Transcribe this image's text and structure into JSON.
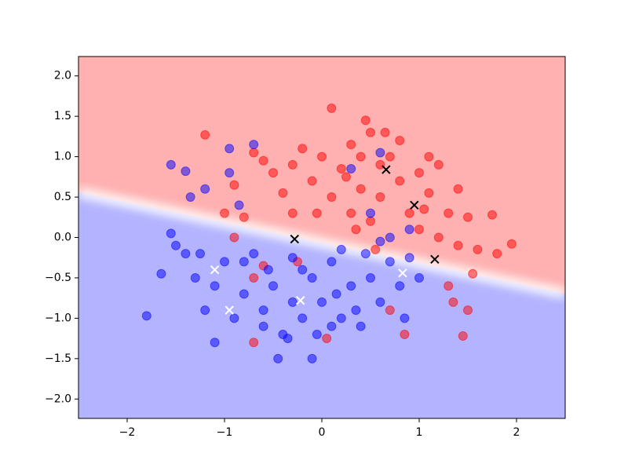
{
  "chart_data": {
    "type": "scatter",
    "xlim": [
      -2.5,
      2.5
    ],
    "ylim": [
      -2.24,
      2.24
    ],
    "xticks": [
      {
        "value": -2,
        "label": "−2"
      },
      {
        "value": -1,
        "label": "−1"
      },
      {
        "value": 0,
        "label": "0"
      },
      {
        "value": 1,
        "label": "1"
      },
      {
        "value": 2,
        "label": "2"
      }
    ],
    "yticks": [
      {
        "value": -2,
        "label": "−2.0"
      },
      {
        "value": -1.5,
        "label": "−1.5"
      },
      {
        "value": -1,
        "label": "−1.0"
      },
      {
        "value": -0.5,
        "label": "−0.5"
      },
      {
        "value": 0,
        "label": "0.0"
      },
      {
        "value": 0.5,
        "label": "0.5"
      },
      {
        "value": 1,
        "label": "1.0"
      },
      {
        "value": 1.5,
        "label": "1.5"
      },
      {
        "value": 2,
        "label": "2.0"
      }
    ],
    "series": [
      {
        "color": "#ff0000",
        "marker": "o",
        "x": [
          -1.2,
          -0.9,
          -0.7,
          -0.6,
          -0.5,
          -0.4,
          -0.3,
          -0.2,
          -0.1,
          0,
          0.1,
          0.1,
          0.2,
          0.3,
          0.4,
          0.4,
          0.5,
          0.6,
          0.6,
          0.7,
          0.8,
          0.8,
          0.9,
          1.0,
          1.0,
          1.1,
          1.2,
          1.2,
          1.3,
          1.4,
          1.4,
          1.5,
          1.6,
          1.75,
          1.8,
          1.95,
          1.3,
          1.35,
          1.5,
          1.45,
          1.55,
          -0.25,
          -0.6,
          -0.7,
          -0.7,
          0.05,
          0.7,
          0.85,
          -0.3,
          -0.8,
          -0.9,
          0.35,
          0.5,
          -1.0,
          0.3,
          0.25,
          -0.05,
          0.45,
          0.65,
          1.1,
          0.55,
          1.05
        ],
        "values": [
          1.27,
          0.65,
          1.05,
          0.95,
          0.8,
          0.55,
          0.9,
          1.1,
          0.7,
          1.0,
          1.6,
          0.5,
          0.85,
          1.15,
          0.6,
          1.0,
          1.3,
          0.9,
          0.5,
          1.0,
          0.7,
          1.2,
          0.3,
          0.8,
          0.1,
          0.55,
          0.0,
          0.9,
          0.3,
          -0.1,
          0.6,
          0.25,
          -0.15,
          0.28,
          -0.2,
          -0.08,
          -0.6,
          -0.8,
          -0.9,
          -1.22,
          -0.45,
          -0.3,
          -0.35,
          -0.5,
          -1.3,
          -1.25,
          -0.9,
          -1.2,
          0.3,
          0.25,
          0.0,
          0.1,
          0.2,
          0.3,
          0.3,
          0.75,
          0.3,
          1.45,
          1.3,
          1.0,
          -0.15,
          0.35
        ]
      },
      {
        "color": "#0000ff",
        "marker": "o",
        "x": [
          -1.8,
          -1.55,
          -1.4,
          -1.5,
          -1.4,
          -1.3,
          -1.2,
          -1.1,
          -1.0,
          -1.1,
          -0.9,
          -0.8,
          -0.7,
          -0.6,
          -0.5,
          -0.4,
          -0.45,
          -0.3,
          -0.2,
          -0.1,
          -0.1,
          0,
          0.1,
          0.2,
          0.3,
          0.4,
          0.5,
          0.6,
          0.7,
          0.8,
          0.85,
          0.9,
          1.0,
          -0.95,
          -0.7,
          -0.95,
          -1.2,
          -1.35,
          -1.55,
          0.6,
          0.3,
          0.5,
          0.7,
          0.6,
          0.9,
          -0.3,
          -0.2,
          0.15,
          -0.6,
          -0.8,
          -1.25,
          -0.05,
          0.35,
          -0.35,
          0.1,
          -0.55,
          0.45,
          -1.65,
          -0.85,
          0.2
        ],
        "values": [
          -0.97,
          0.9,
          0.82,
          -0.1,
          -0.2,
          -0.5,
          -0.9,
          -0.6,
          -0.3,
          -1.3,
          -1.0,
          -0.7,
          -0.2,
          -0.9,
          -0.6,
          -1.2,
          -1.5,
          -0.8,
          -1.0,
          -0.5,
          -1.5,
          -0.8,
          -0.3,
          -1.0,
          -0.6,
          -1.1,
          -0.5,
          -0.8,
          -0.3,
          -0.6,
          -1.0,
          -0.25,
          -0.5,
          1.1,
          1.15,
          0.8,
          0.6,
          0.5,
          0.05,
          1.05,
          0.85,
          0.3,
          0.0,
          -0.05,
          0.1,
          -0.25,
          -0.4,
          -0.7,
          -1.1,
          -0.3,
          -0.2,
          -1.2,
          -0.9,
          -1.25,
          -1.1,
          -0.4,
          -0.2,
          -0.45,
          0.4,
          -0.15
        ]
      },
      {
        "color": "#000000",
        "marker": "x",
        "x": [
          -0.28,
          0.66,
          0.95,
          1.16
        ],
        "values": [
          -0.02,
          0.84,
          0.4,
          -0.27
        ]
      },
      {
        "color": "#ffffff",
        "marker": "x",
        "x": [
          -1.1,
          -0.95,
          -0.22,
          0.83
        ],
        "values": [
          -0.4,
          -0.9,
          -0.78,
          -0.44
        ]
      }
    ]
  }
}
